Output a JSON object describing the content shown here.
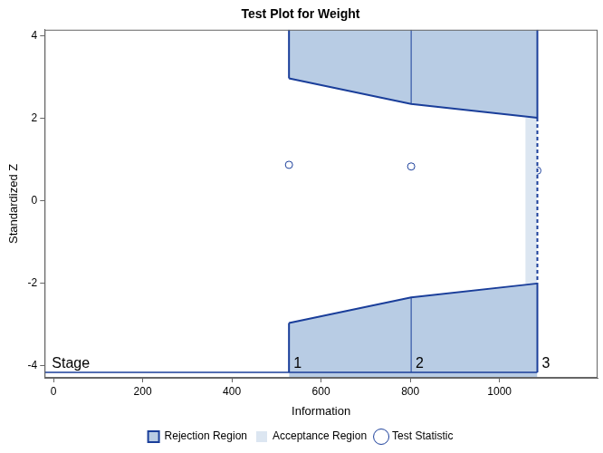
{
  "chart_data": {
    "type": "line",
    "title": "Test Plot for Weight",
    "x_label": "Information",
    "y_label": "Standardized Z",
    "xlim": [
      -20,
      1220
    ],
    "xticks": [
      0,
      200,
      400,
      600,
      800,
      1000
    ],
    "ylim": [
      -4.3,
      4.15
    ],
    "yticks": [
      -4,
      -2,
      0,
      2,
      4
    ],
    "grid": false,
    "legend": "bottom",
    "color": "#1a3e9a",
    "stage_label": "Stage",
    "stages": [
      1,
      2,
      3
    ],
    "information": [
      528,
      802,
      1085
    ],
    "upper_boundary": [
      2.97,
      2.35,
      2.01
    ],
    "lower_boundary": [
      -2.97,
      -2.35,
      -2.01
    ],
    "acceptance_start": 1058,
    "series": [
      {
        "name": "Rejection Region",
        "color": "#b8cce4"
      },
      {
        "name": "Acceptance Region",
        "color": "#dce6f1"
      },
      {
        "name": "Test Statistic",
        "color": "#1a3e9a",
        "marker": "circle",
        "values": [
          0.87,
          0.83,
          0.73
        ]
      }
    ]
  }
}
